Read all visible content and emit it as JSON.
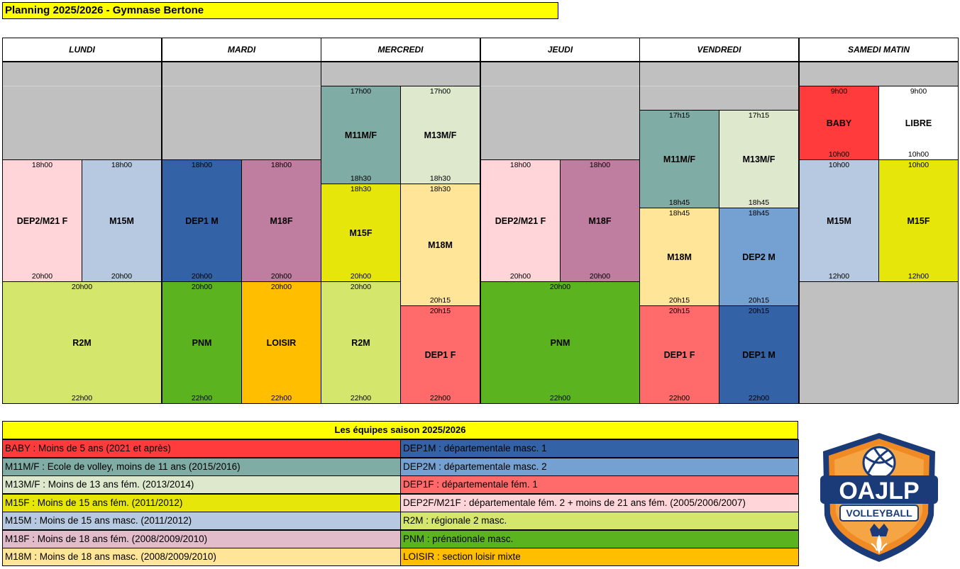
{
  "title": "Planning 2025/2026 - Gymnase Bertone",
  "days": [
    "LUNDI",
    "MARDI",
    "MERCREDI",
    "JEUDI",
    "VENDREDI",
    "SAMEDI MATIN"
  ],
  "colors": {
    "baby": "#ff3b3b",
    "libre": "#ffffff",
    "m11": "#80aca6",
    "m13": "#dde8cc",
    "m15f": "#e6e60a",
    "m15m": "#b6c9e0",
    "m18f": "#bf7d9f",
    "m18m": "#ffe597",
    "dep1m": "#3462a6",
    "dep2m": "#75a0d2",
    "dep1f": "#ff6b6b",
    "dep2f": "#ffd5da",
    "r2m": "#d4e66c",
    "pnm": "#5cb320",
    "loisir": "#ffbe00",
    "empty": "#c0c0c0"
  },
  "slots": [
    {
      "day": "LUNDI",
      "name": "DEP2/M21 F",
      "start": "18h00",
      "end": "20h00",
      "color": "dep2f"
    },
    {
      "day": "LUNDI",
      "name": "M15M",
      "start": "18h00",
      "end": "20h00",
      "color": "m15m"
    },
    {
      "day": "LUNDI",
      "name": "R2M",
      "start": "20h00",
      "end": "22h00",
      "color": "r2m"
    },
    {
      "day": "MARDI",
      "name": "DEP1 M",
      "start": "18h00",
      "end": "20h00",
      "color": "dep1m"
    },
    {
      "day": "MARDI",
      "name": "M18F",
      "start": "18h00",
      "end": "20h00",
      "color": "m18f"
    },
    {
      "day": "MARDI",
      "name": "PNM",
      "start": "20h00",
      "end": "22h00",
      "color": "pnm"
    },
    {
      "day": "MARDI",
      "name": "LOISIR",
      "start": "20h00",
      "end": "22h00",
      "color": "loisir"
    },
    {
      "day": "MERCREDI",
      "name": "M11M/F",
      "start": "17h00",
      "end": "18h30",
      "color": "m11"
    },
    {
      "day": "MERCREDI",
      "name": "M13M/F",
      "start": "17h00",
      "end": "18h30",
      "color": "m13"
    },
    {
      "day": "MERCREDI",
      "name": "M15F",
      "start": "18h30",
      "end": "20h00",
      "color": "m15f"
    },
    {
      "day": "MERCREDI",
      "name": "M18M",
      "start": "18h30",
      "end": "20h15",
      "color": "m18m"
    },
    {
      "day": "MERCREDI",
      "name": "R2M",
      "start": "20h00",
      "end": "22h00",
      "color": "r2m"
    },
    {
      "day": "MERCREDI",
      "name": "DEP1 F",
      "start": "20h15",
      "end": "22h00",
      "color": "dep1f"
    },
    {
      "day": "JEUDI",
      "name": "DEP2/M21 F",
      "start": "18h00",
      "end": "20h00",
      "color": "dep2f"
    },
    {
      "day": "JEUDI",
      "name": "M18F",
      "start": "18h00",
      "end": "20h00",
      "color": "m18f"
    },
    {
      "day": "JEUDI",
      "name": "PNM",
      "start": "20h00",
      "end": "22h00",
      "color": "pnm"
    },
    {
      "day": "VENDREDI",
      "name": "M11M/F",
      "start": "17h15",
      "end": "18h45",
      "color": "m11"
    },
    {
      "day": "VENDREDI",
      "name": "M13M/F",
      "start": "17h15",
      "end": "18h45",
      "color": "m13"
    },
    {
      "day": "VENDREDI",
      "name": "M18M",
      "start": "18h45",
      "end": "20h15",
      "color": "m18m"
    },
    {
      "day": "VENDREDI",
      "name": "DEP2 M",
      "start": "18h45",
      "end": "20h15",
      "color": "dep2m"
    },
    {
      "day": "VENDREDI",
      "name": "DEP1 F",
      "start": "20h15",
      "end": "22h00",
      "color": "dep1f"
    },
    {
      "day": "VENDREDI",
      "name": "DEP1 M",
      "start": "20h15",
      "end": "22h00",
      "color": "dep1m"
    },
    {
      "day": "SAMEDI MATIN",
      "name": "BABY",
      "start": "9h00",
      "end": "10h00",
      "color": "baby"
    },
    {
      "day": "SAMEDI MATIN",
      "name": "LIBRE",
      "start": "9h00",
      "end": "10h00",
      "color": "libre"
    },
    {
      "day": "SAMEDI MATIN",
      "name": "M15M",
      "start": "10h00",
      "end": "12h00",
      "color": "m15m"
    },
    {
      "day": "SAMEDI MATIN",
      "name": "M15F",
      "start": "10h00",
      "end": "12h00",
      "color": "m15f"
    }
  ],
  "legend": {
    "title": "Les équipes saison 2025/2026",
    "left": [
      {
        "text": "BABY : Moins de 5 ans (2021 et après)",
        "color": "baby"
      },
      {
        "text": "M11M/F : Ecole de volley, moins de 11 ans (2015/2016)",
        "color": "m11"
      },
      {
        "text": "M13M/F : Moins de 13 ans fém. (2013/2014)",
        "color": "m13"
      },
      {
        "text": "M15F : Moins de 15 ans fém. (2011/2012)",
        "color": "m15f"
      },
      {
        "text": "M15M : Moins de 15 ans masc. (2011/2012)",
        "color": "m15m"
      },
      {
        "text": "M18F : Moins de 18 ans fém. (2008/2009/2010)",
        "color": "m18f_legend"
      },
      {
        "text": "M18M : Moins de 18 ans masc. (2008/2009/2010)",
        "color": "m18m"
      }
    ],
    "right": [
      {
        "text": "DEP1M : départementale masc. 1",
        "color": "dep1m"
      },
      {
        "text": "DEP2M : départementale masc. 2",
        "color": "dep2m"
      },
      {
        "text": "DEP1F : départementale fém. 1",
        "color": "dep1f"
      },
      {
        "text": "DEP2F/M21F : départementale fém. 2 + moins de 21 ans fém. (2005/2006/2007)",
        "color": "dep2f"
      },
      {
        "text": "R2M : régionale 2 masc.",
        "color": "r2m"
      },
      {
        "text": "PNM : prénationale masc.",
        "color": "pnm"
      },
      {
        "text": "LOISIR : section loisir mixte",
        "color": "loisir"
      }
    ],
    "m18f_legend_color": "#e2bccb"
  },
  "logo": {
    "main": "OAJLP",
    "sub": "VOLLEYBALL"
  }
}
